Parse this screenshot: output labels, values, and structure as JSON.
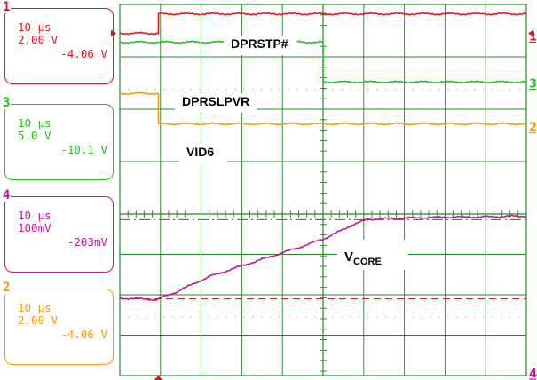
{
  "channels": [
    {
      "num": "1",
      "timebase": "10 µs",
      "scale": "2.00 V",
      "offset": "-4.06 V",
      "color": "#e8141c"
    },
    {
      "num": "3",
      "timebase": "10 µs",
      "scale": "5.0 V",
      "offset": "-10.1 V",
      "color": "#22c21a"
    },
    {
      "num": "4",
      "timebase": "10 µs",
      "scale": "100mV",
      "offset": "-203mV",
      "color": "#c4169c"
    },
    {
      "num": "2",
      "timebase": "10 µs",
      "scale": "2.00 V",
      "offset": "-4.06 V",
      "color": "#f39a0e"
    }
  ],
  "colors": {
    "grid": "#1e8c1e",
    "grid_dots": "#9a9a9a",
    "screen_bg": "#ffffff"
  },
  "chart_data": {
    "type": "line",
    "x_unit": "divisions (10 µs/div)",
    "xlim": [
      0,
      10
    ],
    "upper_pane_ylim": [
      0,
      4
    ],
    "lower_pane_ylim": [
      0,
      4
    ],
    "series": [
      {
        "name": "DPRSTP#",
        "channel": "1",
        "pane": "upper",
        "points": [
          [
            0,
            3.45
          ],
          [
            0.95,
            3.45
          ],
          [
            0.95,
            3.82
          ],
          [
            10,
            3.82
          ]
        ]
      },
      {
        "name": "DPRSLPVR",
        "channel": "3",
        "pane": "upper",
        "points": [
          [
            0,
            3.28
          ],
          [
            5,
            3.28
          ],
          [
            5,
            2.52
          ],
          [
            10,
            2.52
          ]
        ]
      },
      {
        "name": "VID6",
        "channel": "2",
        "pane": "upper",
        "points": [
          [
            0,
            2.3
          ],
          [
            0.95,
            2.3
          ],
          [
            0.95,
            1.72
          ],
          [
            10,
            1.72
          ]
        ]
      },
      {
        "name": "V_CORE",
        "channel": "4",
        "pane": "lower",
        "points": [
          [
            0,
            1.92
          ],
          [
            0.9,
            1.88
          ],
          [
            1.3,
            2.03
          ],
          [
            2.2,
            2.45
          ],
          [
            3.5,
            2.88
          ],
          [
            4.5,
            3.2
          ],
          [
            5.1,
            3.42
          ],
          [
            5.7,
            3.72
          ],
          [
            6.1,
            3.87
          ],
          [
            7,
            3.9
          ],
          [
            8,
            3.92
          ],
          [
            9,
            3.93
          ],
          [
            10,
            3.95
          ]
        ]
      }
    ],
    "labels": {
      "ch1": "DPRSTP#",
      "ch3": "DPRSLPVR",
      "ch2": "VID6",
      "ch4_main": "V",
      "ch4_sub": "CORE"
    },
    "side_markers": [
      {
        "num": "1",
        "color": "#e8141c"
      },
      {
        "num": "3",
        "color": "#22c21a"
      },
      {
        "num": "2",
        "color": "#f39a0e"
      },
      {
        "num": "4",
        "color": "#c4169c"
      }
    ]
  }
}
